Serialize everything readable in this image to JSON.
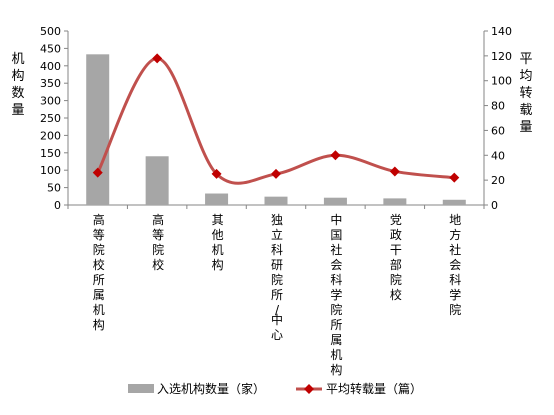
{
  "chart_data": {
    "type": "bar",
    "combo": "bar + smoothed line (dual y-axis)",
    "categories": [
      "高等院校所属机构",
      "高等院校",
      "其他机构",
      "独立科研院所/中心",
      "中国社会科学院所属机构",
      "党政干部院校",
      "地方社会科学院"
    ],
    "series": [
      {
        "name": "入选机构数量（家）",
        "type": "bar",
        "axis": "left",
        "color": "#a6a6a6",
        "values": [
          433,
          140,
          33,
          24,
          21,
          19,
          15
        ]
      },
      {
        "name": "平均转载量（篇）",
        "type": "line",
        "axis": "right",
        "color": "#c0504d",
        "marker": "diamond",
        "marker_color": "#c00000",
        "smooth": true,
        "values": [
          26,
          118,
          25,
          25,
          40,
          27,
          22
        ]
      }
    ],
    "ylabel": "机构数量",
    "y2label": "平均转载量",
    "ylim": [
      0,
      500
    ],
    "y_ticks": [
      0,
      50,
      100,
      150,
      200,
      250,
      300,
      350,
      400,
      450,
      500
    ],
    "y2lim": [
      0,
      140
    ],
    "y2_ticks": [
      0,
      20,
      40,
      60,
      80,
      100,
      120,
      140
    ],
    "grid": false,
    "legend_position": "bottom"
  }
}
